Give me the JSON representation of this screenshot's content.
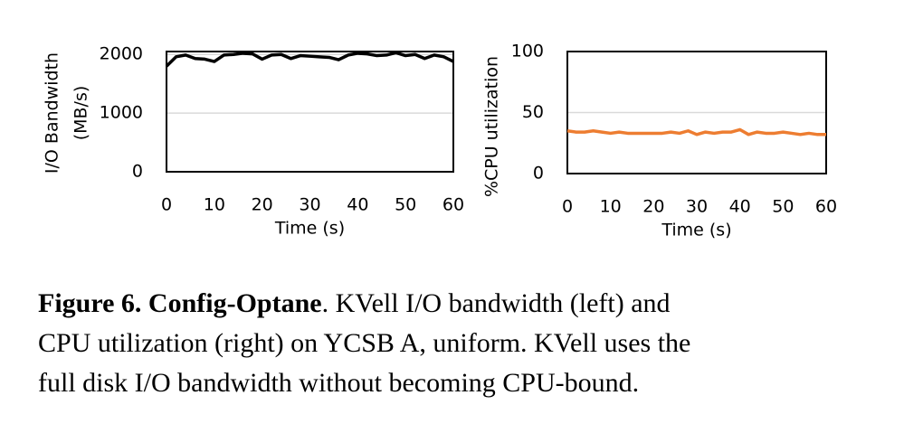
{
  "chart_data": [
    {
      "type": "line",
      "ylabel": [
        "I/O Bandwidth",
        "(MB/s)"
      ],
      "xlabel": "Time (s)",
      "x": [
        0,
        2,
        4,
        6,
        8,
        10,
        12,
        14,
        16,
        18,
        20,
        22,
        24,
        26,
        28,
        30,
        32,
        34,
        36,
        38,
        40,
        42,
        44,
        46,
        48,
        50,
        52,
        54,
        56,
        58,
        60
      ],
      "series": [
        {
          "color": "#000000",
          "values": [
            1800,
            1960,
            1990,
            1930,
            1920,
            1880,
            1990,
            2000,
            2020,
            2010,
            1920,
            1990,
            2000,
            1930,
            1980,
            1970,
            1960,
            1950,
            1910,
            1990,
            2020,
            2010,
            1980,
            1990,
            2030,
            1980,
            2000,
            1930,
            1990,
            1960,
            1880
          ]
        }
      ],
      "xlim": [
        0,
        60
      ],
      "xticks": [
        0,
        10,
        20,
        30,
        40,
        50,
        60
      ],
      "ylim": [
        0,
        2050
      ],
      "yticks": [
        0,
        1000,
        2000
      ],
      "grid": true
    },
    {
      "type": "line",
      "ylabel": [
        "%CPU utilization"
      ],
      "xlabel": "Time (s)",
      "x": [
        0,
        2,
        4,
        6,
        8,
        10,
        12,
        14,
        16,
        18,
        20,
        22,
        24,
        26,
        28,
        30,
        32,
        34,
        36,
        38,
        40,
        42,
        44,
        46,
        48,
        50,
        52,
        54,
        56,
        58,
        60
      ],
      "series": [
        {
          "color": "#ed7d31",
          "values": [
            35,
            34,
            34,
            35,
            34,
            33,
            34,
            33,
            33,
            33,
            33,
            33,
            34,
            33,
            35,
            32,
            34,
            33,
            34,
            34,
            36,
            32,
            34,
            33,
            33,
            34,
            33,
            32,
            33,
            32,
            32
          ]
        }
      ],
      "xlim": [
        0,
        60
      ],
      "xticks": [
        0,
        10,
        20,
        30,
        40,
        50,
        60
      ],
      "ylim": [
        0,
        100
      ],
      "yticks": [
        0,
        50,
        100
      ],
      "grid": true
    }
  ],
  "caption": {
    "label": "Figure 6. Config-Optane",
    "lines": [
      ". KVell I/O bandwidth (left) and",
      "CPU utilization (right) on YCSB A, uniform. KVell uses the",
      "full disk I/O bandwidth without becoming CPU-bound."
    ]
  }
}
